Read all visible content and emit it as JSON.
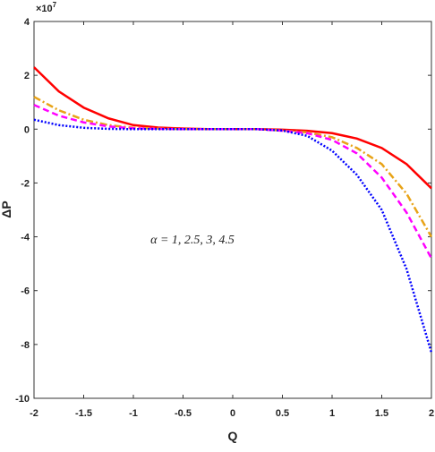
{
  "chart_data": {
    "type": "line",
    "x_label": "Q",
    "y_label": "ΔP",
    "y_multiplier": "×10",
    "y_multiplier_exponent": "7",
    "annotation": "α = 1, 2.5, 3, 4.5",
    "x": [
      -2,
      -1.75,
      -1.5,
      -1.25,
      -1,
      -0.75,
      -0.5,
      -0.25,
      0,
      0.25,
      0.5,
      0.75,
      1,
      1.25,
      1.5,
      1.75,
      2
    ],
    "series": [
      {
        "color": "#ff0000",
        "dash": "none",
        "width": 2.5,
        "values": [
          2.3,
          1.4,
          0.8,
          0.4,
          0.15,
          0.06,
          0.02,
          0,
          0,
          0,
          -0.02,
          -0.06,
          -0.15,
          -0.35,
          -0.7,
          -1.3,
          -2.2
        ]
      },
      {
        "color": "#e8a317",
        "dash": "8 3 2 3",
        "width": 2.5,
        "values": [
          1.2,
          0.7,
          0.35,
          0.15,
          0.05,
          0.02,
          0,
          0,
          0,
          0,
          -0.05,
          -0.12,
          -0.3,
          -0.7,
          -1.3,
          -2.4,
          -4.0
        ]
      },
      {
        "color": "#ff00ff",
        "dash": "7 4",
        "width": 2.5,
        "values": [
          0.9,
          0.5,
          0.25,
          0.1,
          0.03,
          0.01,
          0,
          0,
          0,
          0,
          -0.06,
          -0.15,
          -0.4,
          -0.9,
          -1.8,
          -3.1,
          -4.8
        ]
      },
      {
        "color": "#0000ff",
        "dash": "2 2",
        "width": 2.5,
        "values": [
          0.35,
          0.15,
          0.05,
          0.01,
          0,
          0,
          0,
          0,
          0,
          0,
          -0.05,
          -0.25,
          -0.8,
          -1.7,
          -3.0,
          -5.2,
          -8.3
        ]
      }
    ],
    "xlim": [
      -2,
      2
    ],
    "xticks": [
      -2,
      -1.5,
      -1,
      -0.5,
      0,
      0.5,
      1,
      1.5,
      2
    ],
    "ylim": [
      -10,
      4
    ],
    "yticks": [
      -10,
      -8,
      -6,
      -4,
      -2,
      0,
      2,
      4
    ]
  }
}
